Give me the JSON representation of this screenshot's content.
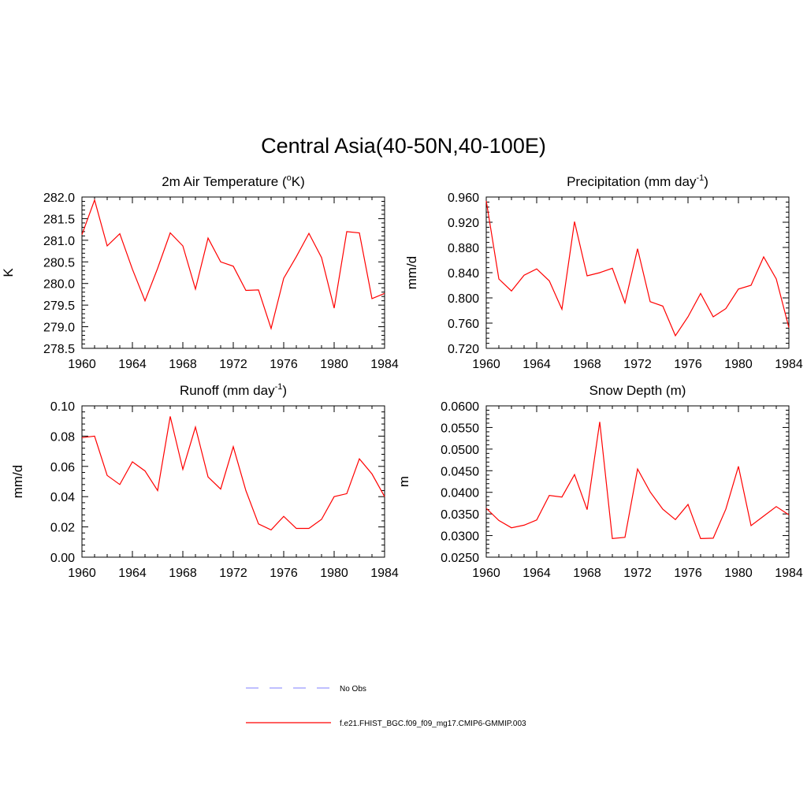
{
  "title": "Central Asia(40-50N,40-100E)",
  "chart_data": [
    {
      "type": "line",
      "title_main": "2m Air Temperature (",
      "title_sup": "o",
      "title_tail": "K)",
      "ylabel": "K",
      "xlim": [
        1960,
        1984
      ],
      "ylim": [
        278.5,
        282.0
      ],
      "xticks": [
        "1960",
        "1964",
        "1968",
        "1972",
        "1976",
        "1980",
        "1984"
      ],
      "yticks": [
        "282.0",
        "281.5",
        "281.0",
        "280.5",
        "280.0",
        "279.5",
        "279.0",
        "278.5"
      ],
      "x": [
        1960,
        1961,
        1962,
        1963,
        1964,
        1965,
        1966,
        1967,
        1968,
        1969,
        1970,
        1971,
        1972,
        1973,
        1974,
        1975,
        1976,
        1977,
        1978,
        1979,
        1980,
        1981,
        1982,
        1983,
        1984
      ],
      "series": [
        {
          "values": [
            281.13,
            281.93,
            280.87,
            281.15,
            280.33,
            279.6,
            280.35,
            281.17,
            280.87,
            279.87,
            281.05,
            280.5,
            280.4,
            279.84,
            279.85,
            278.96,
            280.12,
            280.62,
            281.16,
            280.6,
            279.43,
            281.2,
            281.17,
            279.65,
            279.77
          ]
        }
      ]
    },
    {
      "type": "line",
      "title_main": "Precipitation (mm day",
      "title_sup": "-1",
      "title_tail": ")",
      "ylabel": "mm/d",
      "xlim": [
        1960,
        1984
      ],
      "ylim": [
        0.72,
        0.96
      ],
      "xticks": [
        "1960",
        "1964",
        "1968",
        "1972",
        "1976",
        "1980",
        "1984"
      ],
      "yticks": [
        "0.960",
        "0.920",
        "0.880",
        "0.840",
        "0.800",
        "0.760",
        "0.720"
      ],
      "x": [
        1960,
        1961,
        1962,
        1963,
        1964,
        1965,
        1966,
        1967,
        1968,
        1969,
        1970,
        1971,
        1972,
        1973,
        1974,
        1975,
        1976,
        1977,
        1978,
        1979,
        1980,
        1981,
        1982,
        1983,
        1984
      ],
      "series": [
        {
          "values": [
            0.954,
            0.83,
            0.811,
            0.836,
            0.846,
            0.827,
            0.782,
            0.921,
            0.835,
            0.84,
            0.847,
            0.792,
            0.878,
            0.794,
            0.787,
            0.74,
            0.77,
            0.807,
            0.77,
            0.783,
            0.814,
            0.82,
            0.865,
            0.83,
            0.753
          ]
        }
      ]
    },
    {
      "type": "line",
      "title_main": "Runoff (mm day",
      "title_sup": "-1",
      "title_tail": ")",
      "ylabel": "mm/d",
      "xlim": [
        1960,
        1984
      ],
      "ylim": [
        0.0,
        0.1
      ],
      "xticks": [
        "1960",
        "1964",
        "1968",
        "1972",
        "1976",
        "1980",
        "1984"
      ],
      "yticks": [
        "0.10",
        "0.08",
        "0.06",
        "0.04",
        "0.02",
        "0.00"
      ],
      "x": [
        1960,
        1961,
        1962,
        1963,
        1964,
        1965,
        1966,
        1967,
        1968,
        1969,
        1970,
        1971,
        1972,
        1973,
        1974,
        1975,
        1976,
        1977,
        1978,
        1979,
        1980,
        1981,
        1982,
        1983,
        1984
      ],
      "series": [
        {
          "values": [
            0.079,
            0.08,
            0.054,
            0.048,
            0.063,
            0.057,
            0.044,
            0.093,
            0.058,
            0.086,
            0.053,
            0.045,
            0.073,
            0.044,
            0.022,
            0.018,
            0.027,
            0.019,
            0.019,
            0.025,
            0.04,
            0.042,
            0.065,
            0.055,
            0.04
          ]
        }
      ]
    },
    {
      "type": "line",
      "title_main": "Snow Depth (m)",
      "title_sup": "",
      "title_tail": "",
      "ylabel": "m",
      "xlim": [
        1960,
        1984
      ],
      "ylim": [
        0.025,
        0.06
      ],
      "xticks": [
        "1960",
        "1964",
        "1968",
        "1972",
        "1976",
        "1980",
        "1984"
      ],
      "yticks": [
        "0.0600",
        "0.0550",
        "0.0500",
        "0.0450",
        "0.0400",
        "0.0350",
        "0.0300",
        "0.0250"
      ],
      "x": [
        1960,
        1961,
        1962,
        1963,
        1964,
        1965,
        1966,
        1967,
        1968,
        1969,
        1970,
        1971,
        1972,
        1973,
        1974,
        1975,
        1976,
        1977,
        1978,
        1979,
        1980,
        1981,
        1982,
        1983,
        1984
      ],
      "series": [
        {
          "values": [
            0.0363,
            0.0335,
            0.0318,
            0.0324,
            0.0336,
            0.0393,
            0.0389,
            0.0441,
            0.036,
            0.0563,
            0.0293,
            0.0296,
            0.0454,
            0.0401,
            0.0361,
            0.0337,
            0.0372,
            0.0293,
            0.0294,
            0.0361,
            0.046,
            0.0323,
            0.0345,
            0.0367,
            0.0348
          ]
        }
      ]
    }
  ],
  "legend": [
    {
      "label": "No Obs",
      "color": "#9999ff",
      "style": "dashed"
    },
    {
      "label": "f.e21.FHIST_BGC.f09_f09_mg17.CMIP6-GMMIP.003",
      "color": "#ff0000",
      "style": "solid"
    }
  ],
  "line_color": "#ff0000"
}
